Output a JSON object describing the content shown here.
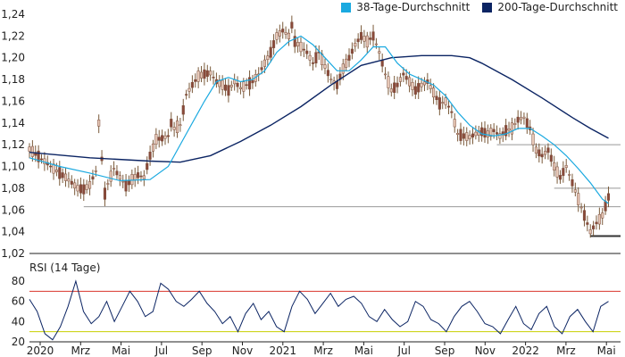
{
  "chart_data": [
    {
      "type": "candlestick",
      "title": "",
      "legend": {
        "placement": "top-right"
      },
      "series": [
        {
          "name": "38-Tage-Durchschnitt",
          "color": "#1aa9e0"
        },
        {
          "name": "200-Tage-Durchschnitt",
          "color": "#0b2463"
        }
      ],
      "ylim": [
        1.02,
        1.24
      ],
      "yticks": [
        "1,24",
        "1,22",
        "1,20",
        "1,18",
        "1,16",
        "1,14",
        "1,12",
        "1,10",
        "1,08",
        "1,06",
        "1,04",
        "1,02"
      ],
      "xticks": [
        "2020",
        "Mrz",
        "Mai",
        "Jul",
        "Sep",
        "Nov",
        "2021",
        "Mrz",
        "Mai",
        "Jul",
        "Sep",
        "Nov",
        "2022",
        "Mrz",
        "Mai"
      ],
      "grid": false,
      "price_path": [
        [
          0,
          1.116
        ],
        [
          4,
          1.107
        ],
        [
          8,
          1.098
        ],
        [
          12,
          1.09
        ],
        [
          16,
          1.08
        ],
        [
          18,
          1.079
        ],
        [
          20,
          1.083
        ],
        [
          22,
          1.096
        ],
        [
          23,
          1.14
        ],
        [
          24,
          1.107
        ],
        [
          25,
          1.075
        ],
        [
          26,
          1.084
        ],
        [
          28,
          1.098
        ],
        [
          30,
          1.09
        ],
        [
          32,
          1.082
        ],
        [
          34,
          1.088
        ],
        [
          36,
          1.092
        ],
        [
          38,
          1.09
        ],
        [
          40,
          1.11
        ],
        [
          42,
          1.125
        ],
        [
          44,
          1.126
        ],
        [
          46,
          1.128
        ],
        [
          47,
          1.14
        ],
        [
          48,
          1.135
        ],
        [
          50,
          1.138
        ],
        [
          52,
          1.166
        ],
        [
          54,
          1.175
        ],
        [
          56,
          1.183
        ],
        [
          58,
          1.185
        ],
        [
          60,
          1.186
        ],
        [
          62,
          1.178
        ],
        [
          64,
          1.175
        ],
        [
          66,
          1.17
        ],
        [
          68,
          1.178
        ],
        [
          70,
          1.172
        ],
        [
          72,
          1.175
        ],
        [
          74,
          1.178
        ],
        [
          76,
          1.185
        ],
        [
          78,
          1.195
        ],
        [
          80,
          1.205
        ],
        [
          82,
          1.22
        ],
        [
          84,
          1.225
        ],
        [
          86,
          1.22
        ],
        [
          87,
          1.23
        ],
        [
          88,
          1.215
        ],
        [
          90,
          1.21
        ],
        [
          92,
          1.205
        ],
        [
          94,
          1.195
        ],
        [
          96,
          1.205
        ],
        [
          98,
          1.192
        ],
        [
          100,
          1.18
        ],
        [
          102,
          1.175
        ],
        [
          104,
          1.19
        ],
        [
          106,
          1.2
        ],
        [
          108,
          1.212
        ],
        [
          110,
          1.22
        ],
        [
          112,
          1.215
        ],
        [
          114,
          1.22
        ],
        [
          116,
          1.205
        ],
        [
          118,
          1.185
        ],
        [
          120,
          1.17
        ],
        [
          122,
          1.175
        ],
        [
          124,
          1.185
        ],
        [
          126,
          1.178
        ],
        [
          128,
          1.17
        ],
        [
          130,
          1.175
        ],
        [
          132,
          1.178
        ],
        [
          134,
          1.168
        ],
        [
          136,
          1.158
        ],
        [
          138,
          1.16
        ],
        [
          140,
          1.15
        ],
        [
          142,
          1.13
        ],
        [
          144,
          1.128
        ],
        [
          146,
          1.127
        ],
        [
          148,
          1.13
        ],
        [
          150,
          1.132
        ],
        [
          152,
          1.13
        ],
        [
          154,
          1.133
        ],
        [
          156,
          1.128
        ],
        [
          158,
          1.133
        ],
        [
          160,
          1.135
        ],
        [
          162,
          1.143
        ],
        [
          164,
          1.145
        ],
        [
          166,
          1.135
        ],
        [
          168,
          1.115
        ],
        [
          170,
          1.11
        ],
        [
          172,
          1.115
        ],
        [
          174,
          1.1
        ],
        [
          176,
          1.09
        ],
        [
          178,
          1.1
        ],
        [
          180,
          1.085
        ],
        [
          182,
          1.07
        ],
        [
          184,
          1.055
        ],
        [
          186,
          1.04
        ],
        [
          188,
          1.048
        ],
        [
          190,
          1.055
        ],
        [
          192,
          1.072
        ]
      ],
      "ma38_path": [
        [
          0,
          1.108
        ],
        [
          10,
          1.1
        ],
        [
          20,
          1.094
        ],
        [
          30,
          1.087
        ],
        [
          40,
          1.088
        ],
        [
          46,
          1.1
        ],
        [
          52,
          1.13
        ],
        [
          58,
          1.16
        ],
        [
          62,
          1.178
        ],
        [
          66,
          1.182
        ],
        [
          70,
          1.178
        ],
        [
          74,
          1.18
        ],
        [
          78,
          1.188
        ],
        [
          82,
          1.205
        ],
        [
          86,
          1.215
        ],
        [
          90,
          1.22
        ],
        [
          94,
          1.212
        ],
        [
          98,
          1.2
        ],
        [
          102,
          1.188
        ],
        [
          106,
          1.188
        ],
        [
          110,
          1.198
        ],
        [
          114,
          1.21
        ],
        [
          118,
          1.21
        ],
        [
          122,
          1.195
        ],
        [
          126,
          1.185
        ],
        [
          130,
          1.18
        ],
        [
          134,
          1.175
        ],
        [
          138,
          1.165
        ],
        [
          142,
          1.15
        ],
        [
          146,
          1.138
        ],
        [
          150,
          1.13
        ],
        [
          154,
          1.128
        ],
        [
          158,
          1.13
        ],
        [
          162,
          1.135
        ],
        [
          166,
          1.135
        ],
        [
          170,
          1.128
        ],
        [
          174,
          1.12
        ],
        [
          178,
          1.11
        ],
        [
          182,
          1.098
        ],
        [
          186,
          1.085
        ],
        [
          190,
          1.07
        ],
        [
          192,
          1.066
        ]
      ],
      "ma200_path": [
        [
          0,
          1.113
        ],
        [
          20,
          1.108
        ],
        [
          40,
          1.105
        ],
        [
          50,
          1.104
        ],
        [
          60,
          1.11
        ],
        [
          70,
          1.123
        ],
        [
          80,
          1.138
        ],
        [
          90,
          1.155
        ],
        [
          100,
          1.175
        ],
        [
          110,
          1.193
        ],
        [
          120,
          1.2
        ],
        [
          130,
          1.202
        ],
        [
          140,
          1.202
        ],
        [
          146,
          1.2
        ],
        [
          150,
          1.195
        ],
        [
          160,
          1.18
        ],
        [
          170,
          1.163
        ],
        [
          180,
          1.145
        ],
        [
          186,
          1.135
        ],
        [
          192,
          1.126
        ]
      ],
      "support_levels": [
        {
          "value": 1.12,
          "from_x": 155,
          "to_x": 196
        },
        {
          "value": 1.08,
          "from_x": 174,
          "to_x": 196
        },
        {
          "value": 1.063,
          "from_x": 18,
          "to_x": 196
        },
        {
          "value": 1.036,
          "from_x": 186,
          "to_x": 196
        }
      ]
    },
    {
      "type": "line",
      "title": "RSI (14 Tage)",
      "ylim": [
        20,
        80
      ],
      "yticks": [
        "80",
        "60",
        "40",
        "20"
      ],
      "reference_lines": [
        {
          "value": 70,
          "color": "#d9342b"
        },
        {
          "value": 30,
          "color": "#c8cf00"
        }
      ],
      "series": [
        {
          "color": "#0b2463",
          "values": [
            62,
            50,
            28,
            22,
            35,
            55,
            80,
            50,
            38,
            45,
            60,
            40,
            55,
            70,
            60,
            45,
            50,
            78,
            72,
            60,
            55,
            62,
            70,
            58,
            50,
            38,
            45,
            30,
            48,
            58,
            42,
            50,
            35,
            30,
            55,
            70,
            62,
            48,
            58,
            68,
            55,
            62,
            65,
            58,
            45,
            40,
            52,
            42,
            35,
            40,
            60,
            55,
            42,
            38,
            30,
            45,
            55,
            60,
            50,
            38,
            35,
            28,
            42,
            55,
            38,
            32,
            48,
            55,
            35,
            28,
            45,
            52,
            40,
            30,
            55,
            60
          ]
        }
      ]
    }
  ]
}
